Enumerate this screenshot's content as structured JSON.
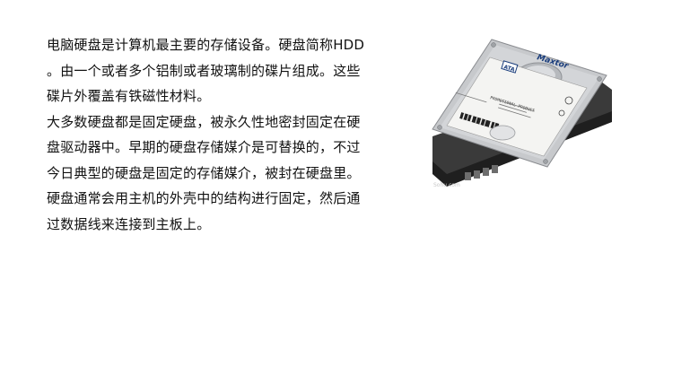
{
  "article": {
    "lines": [
      "电脑硬盘是计算机最主要的存储设备。硬盘简称HDD",
      "。由一个或者多个铝制或者玻璃制的碟片组成。这些",
      "碟片外覆盖有铁磁性材料。",
      "大多数硬盘都是固定硬盘，被永久性地密封固定在硬",
      "盘驱动器中。早期的硬盘存储媒介是可替换的，不过",
      "今日典型的硬盘是固定的存储媒介，被封在硬盘里。",
      "硬盘通常会用主机的外壳中的结构进行固定，然后通",
      "过数据线来连接到主板上。"
    ]
  },
  "image": {
    "icon": "hard-disk-drive-photo",
    "brand_logo": "Maxtor",
    "label_text": "PROMOTIONAL PRODUCT",
    "badge_text": "ATA",
    "watermark": "Sohu.com"
  },
  "colors": {
    "text": "#111111",
    "background": "#ffffff"
  }
}
